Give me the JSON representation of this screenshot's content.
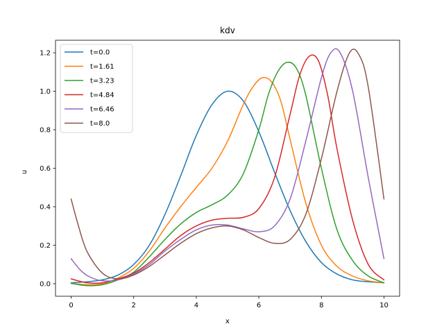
{
  "chart_data": {
    "type": "line",
    "title": "kdv",
    "xlabel": "x",
    "ylabel": "u",
    "xlim": [
      -0.5,
      10.5
    ],
    "ylim": [
      -0.065,
      1.265
    ],
    "xticks": [
      0,
      2,
      4,
      6,
      8,
      10
    ],
    "xtick_labels": [
      "0",
      "2",
      "4",
      "6",
      "8",
      "10"
    ],
    "yticks": [
      0.0,
      0.2,
      0.4,
      0.6,
      0.8,
      1.0,
      1.2
    ],
    "ytick_labels": [
      "0.0",
      "0.2",
      "0.4",
      "0.6",
      "0.8",
      "1.0",
      "1.2"
    ],
    "grid": false,
    "legend_position": "top-left",
    "series": [
      {
        "name": "t=0.0",
        "color": "#1f77b4",
        "x": [
          0,
          0.5,
          1,
          1.5,
          2,
          2.5,
          3,
          3.5,
          4,
          4.5,
          5,
          5.5,
          6,
          6.5,
          7,
          7.5,
          8,
          8.5,
          9,
          9.5,
          10
        ],
        "y": [
          0.005,
          0.01,
          0.02,
          0.045,
          0.1,
          0.2,
          0.36,
          0.56,
          0.77,
          0.93,
          1.0,
          0.95,
          0.79,
          0.58,
          0.38,
          0.22,
          0.11,
          0.05,
          0.02,
          0.01,
          0.005
        ]
      },
      {
        "name": "t=1.61",
        "color": "#ff7f0e",
        "x": [
          0,
          0.5,
          1,
          1.5,
          2,
          2.5,
          3,
          3.5,
          4,
          4.5,
          5,
          5.5,
          5.8,
          6.1,
          6.4,
          6.7,
          7,
          7.5,
          8,
          8.5,
          9,
          9.5,
          10
        ],
        "y": [
          0.002,
          -0.005,
          0.0,
          0.03,
          0.08,
          0.17,
          0.29,
          0.4,
          0.5,
          0.6,
          0.74,
          0.93,
          1.02,
          1.07,
          1.05,
          0.95,
          0.75,
          0.42,
          0.2,
          0.09,
          0.04,
          0.015,
          0.005
        ]
      },
      {
        "name": "t=3.23",
        "color": "#2ca02c",
        "x": [
          0,
          0.5,
          1,
          1.5,
          2,
          2.5,
          3,
          3.5,
          4,
          4.5,
          5,
          5.5,
          6,
          6.3,
          6.6,
          6.9,
          7.2,
          7.5,
          8,
          8.5,
          9,
          9.5,
          10
        ],
        "y": [
          0.002,
          -0.01,
          -0.005,
          0.02,
          0.06,
          0.14,
          0.23,
          0.31,
          0.37,
          0.41,
          0.46,
          0.57,
          0.8,
          0.98,
          1.1,
          1.15,
          1.12,
          0.98,
          0.6,
          0.28,
          0.12,
          0.04,
          0.005
        ]
      },
      {
        "name": "t=4.84",
        "color": "#d62728",
        "x": [
          0,
          0.5,
          1,
          1.5,
          2,
          2.5,
          3,
          3.5,
          4,
          4.5,
          5,
          5.5,
          6,
          6.5,
          7,
          7.3,
          7.6,
          7.9,
          8.2,
          8.5,
          9,
          9.5,
          10
        ],
        "y": [
          0.025,
          0.005,
          0.005,
          0.025,
          0.055,
          0.11,
          0.18,
          0.25,
          0.3,
          0.33,
          0.34,
          0.345,
          0.39,
          0.55,
          0.88,
          1.08,
          1.18,
          1.16,
          0.98,
          0.7,
          0.33,
          0.1,
          0.02
        ]
      },
      {
        "name": "t=6.46",
        "color": "#9467bd",
        "x": [
          0,
          0.3,
          0.6,
          1,
          1.5,
          2,
          2.5,
          3,
          3.5,
          4,
          4.5,
          5,
          5.5,
          6,
          6.5,
          7,
          7.5,
          8,
          8.3,
          8.6,
          9,
          9.5,
          10
        ],
        "y": [
          0.13,
          0.07,
          0.035,
          0.015,
          0.02,
          0.05,
          0.1,
          0.17,
          0.23,
          0.28,
          0.305,
          0.305,
          0.285,
          0.27,
          0.3,
          0.44,
          0.74,
          1.07,
          1.2,
          1.2,
          1.0,
          0.55,
          0.13
        ]
      },
      {
        "name": "t=8.0",
        "color": "#8c564b",
        "x": [
          0,
          0.2,
          0.5,
          1,
          1.5,
          2,
          2.5,
          3,
          3.5,
          4,
          4.5,
          5,
          5.5,
          6,
          6.5,
          7,
          7.5,
          8,
          8.5,
          8.9,
          9.2,
          9.5,
          10
        ],
        "y": [
          0.44,
          0.32,
          0.17,
          0.055,
          0.025,
          0.045,
          0.09,
          0.15,
          0.21,
          0.26,
          0.29,
          0.3,
          0.28,
          0.24,
          0.21,
          0.23,
          0.36,
          0.65,
          1.0,
          1.2,
          1.19,
          1.02,
          0.44
        ]
      }
    ]
  }
}
